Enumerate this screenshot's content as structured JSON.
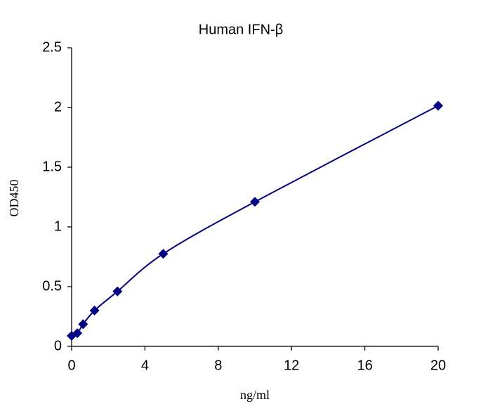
{
  "chart_data": {
    "type": "scatter",
    "title": "Human IFN-β",
    "x_label": "ng/ml",
    "y_label": "OD450",
    "series": [
      {
        "color": "#000080",
        "x": [
          0,
          0.3125,
          0.625,
          1.25,
          2.5,
          5,
          10,
          20
        ],
        "values": [
          0.088,
          0.11,
          0.185,
          0.3,
          0.46,
          0.775,
          1.21,
          2.015
        ]
      }
    ],
    "xlim": [
      0,
      20
    ],
    "xticks": [
      0,
      4,
      8,
      12,
      16,
      20
    ],
    "ylim": [
      0,
      2.5
    ],
    "yticks": [
      0,
      0.5,
      1,
      1.5,
      2,
      2.5
    ],
    "grid": false,
    "smooth_line": true
  }
}
